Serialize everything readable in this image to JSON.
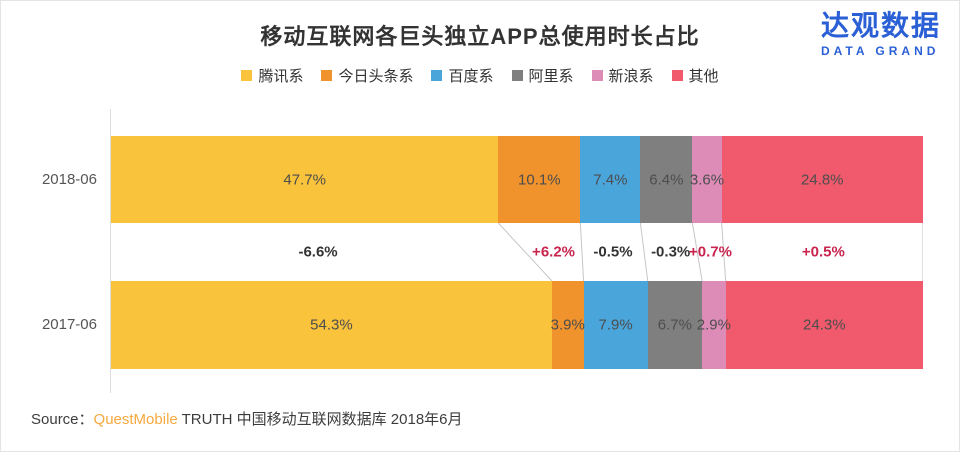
{
  "header": {
    "logo": {
      "cn": "达观数据",
      "en": "DATA GRAND",
      "color": "#2A5FD6"
    }
  },
  "chart_data": {
    "type": "bar",
    "variant": "horizontal-stacked-100pct-comparison",
    "title": "移动互联网各巨头独立APP总使用时长占比",
    "categories": [
      "腾讯系",
      "今日头条系",
      "百度系",
      "阿里系",
      "新浪系",
      "其他"
    ],
    "colors": [
      "#FAC33C",
      "#F0932C",
      "#4AA5DB",
      "#7F7F7F",
      "#DD8CB8",
      "#F15A6C"
    ],
    "unit": "%",
    "xlim": [
      0,
      100
    ],
    "legend_position": "top",
    "grid": false,
    "series": [
      {
        "name": "2018-06",
        "values": [
          47.7,
          10.1,
          7.4,
          6.4,
          3.6,
          24.8
        ]
      },
      {
        "name": "2017-06",
        "values": [
          54.3,
          3.9,
          7.9,
          6.7,
          2.9,
          24.3
        ]
      }
    ],
    "change_row": {
      "labels": [
        "-6.6%",
        "+6.2%",
        "-0.5%",
        "-0.3%",
        "+0.7%",
        "+0.5%"
      ],
      "positive_color": "#C9244E",
      "negative_color": "#333333"
    }
  },
  "source": {
    "label": "Source：",
    "brand": "QuestMobile",
    "rest": " TRUTH 中国移动互联网数据库 2018年6月",
    "brand_color": "#F5A93F"
  }
}
